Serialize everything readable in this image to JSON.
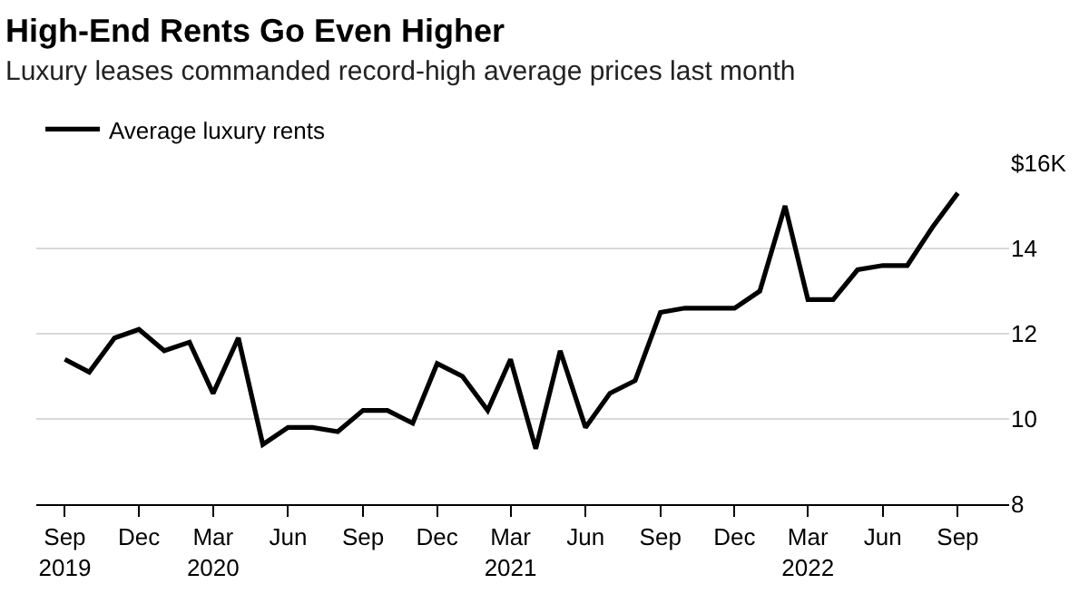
{
  "chart_data": {
    "type": "line",
    "title": "High-End Rents Go Even Higher",
    "subtitle": "Luxury leases commanded record-high average prices last month",
    "x": [
      "2019-09",
      "2019-10",
      "2019-11",
      "2019-12",
      "2020-01",
      "2020-02",
      "2020-03",
      "2020-04",
      "2020-05",
      "2020-06",
      "2020-07",
      "2020-08",
      "2020-09",
      "2020-10",
      "2020-11",
      "2020-12",
      "2021-01",
      "2021-02",
      "2021-03",
      "2021-04",
      "2021-05",
      "2021-06",
      "2021-07",
      "2021-08",
      "2021-09",
      "2021-10",
      "2021-11",
      "2021-12",
      "2022-01",
      "2022-02",
      "2022-03",
      "2022-04",
      "2022-05",
      "2022-06",
      "2022-07",
      "2022-08",
      "2022-09"
    ],
    "series": [
      {
        "name": "Average luxury rents",
        "color": "#000000",
        "values": [
          11.4,
          11.1,
          11.9,
          12.1,
          11.6,
          11.8,
          10.6,
          11.9,
          9.4,
          9.8,
          9.8,
          9.7,
          10.2,
          10.2,
          9.9,
          11.3,
          11.0,
          10.2,
          11.4,
          9.3,
          11.6,
          9.8,
          10.6,
          10.9,
          12.5,
          12.6,
          12.6,
          12.6,
          13.0,
          15.0,
          12.8,
          12.8,
          13.5,
          13.6,
          13.6,
          14.5,
          15.3
        ]
      }
    ],
    "xlim": [
      "2019-07-28",
      "2022-11-03"
    ],
    "xticks": [
      {
        "value": "2019-09",
        "label": "Sep\n2019"
      },
      {
        "value": "2019-12",
        "label": "Dec"
      },
      {
        "value": "2020-03",
        "label": "Mar\n2020"
      },
      {
        "value": "2020-06",
        "label": "Jun"
      },
      {
        "value": "2020-09",
        "label": "Sep"
      },
      {
        "value": "2020-12",
        "label": "Dec"
      },
      {
        "value": "2021-03",
        "label": "Mar\n2021"
      },
      {
        "value": "2021-06",
        "label": "Jun"
      },
      {
        "value": "2021-09",
        "label": "Sep"
      },
      {
        "value": "2021-12",
        "label": "Dec"
      },
      {
        "value": "2022-03",
        "label": "Mar\n2022"
      },
      {
        "value": "2022-06",
        "label": "Jun"
      },
      {
        "value": "2022-09",
        "label": "Sep"
      }
    ],
    "ylim": [
      8,
      16
    ],
    "yticks": [
      8,
      10,
      12,
      14,
      {
        "value": 16,
        "label": "$16K"
      }
    ],
    "grid": "y",
    "legend": "top left",
    "marker": "none",
    "line_style": "solid"
  }
}
